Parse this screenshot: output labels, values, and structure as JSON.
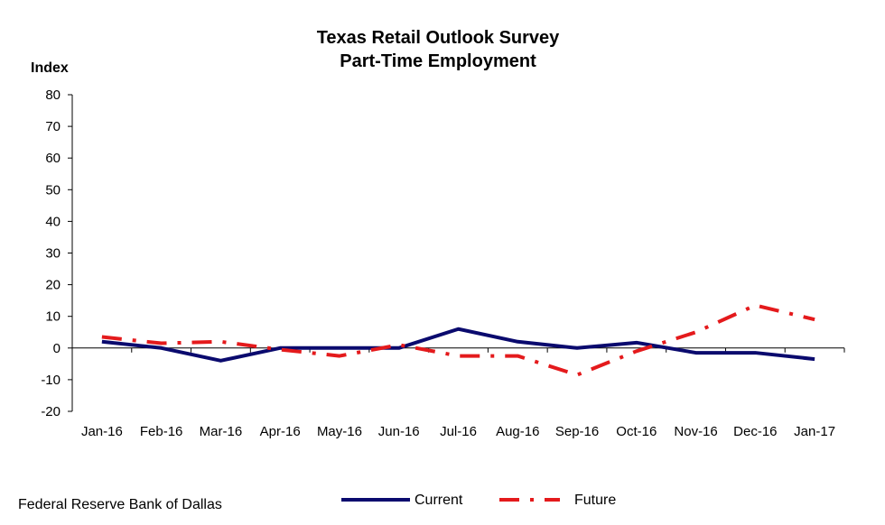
{
  "source": "Federal Reserve Bank of Dallas",
  "colors": {
    "current": "#0a0a6e",
    "future": "#e41a1c",
    "axis": "#000000"
  },
  "chart_data": {
    "type": "line",
    "title": [
      "Texas Retail Outlook Survey",
      "Part-Time Employment"
    ],
    "ylabel": "Index",
    "xlabel": "",
    "ylim": [
      -20,
      80
    ],
    "yticks": [
      -20,
      -10,
      0,
      10,
      20,
      30,
      40,
      50,
      60,
      70,
      80
    ],
    "grid": false,
    "legend_position": "bottom",
    "categories": [
      "Jan-16",
      "Feb-16",
      "Mar-16",
      "Apr-16",
      "May-16",
      "Jun-16",
      "Jul-16",
      "Aug-16",
      "Sep-16",
      "Oct-16",
      "Nov-16",
      "Dec-16",
      "Jan-17"
    ],
    "series": [
      {
        "name": "Current",
        "style": "solid",
        "values": [
          2.0,
          0.0,
          -4.0,
          0.0,
          0.0,
          0.0,
          6.0,
          2.0,
          0.0,
          1.7,
          -1.5,
          -1.5,
          -3.5
        ]
      },
      {
        "name": "Future",
        "style": "dash-dot",
        "values": [
          3.5,
          1.5,
          2.0,
          -0.5,
          -2.5,
          1.0,
          -2.5,
          -2.5,
          -8.5,
          -1.0,
          5.0,
          13.5,
          9.0
        ]
      }
    ]
  }
}
